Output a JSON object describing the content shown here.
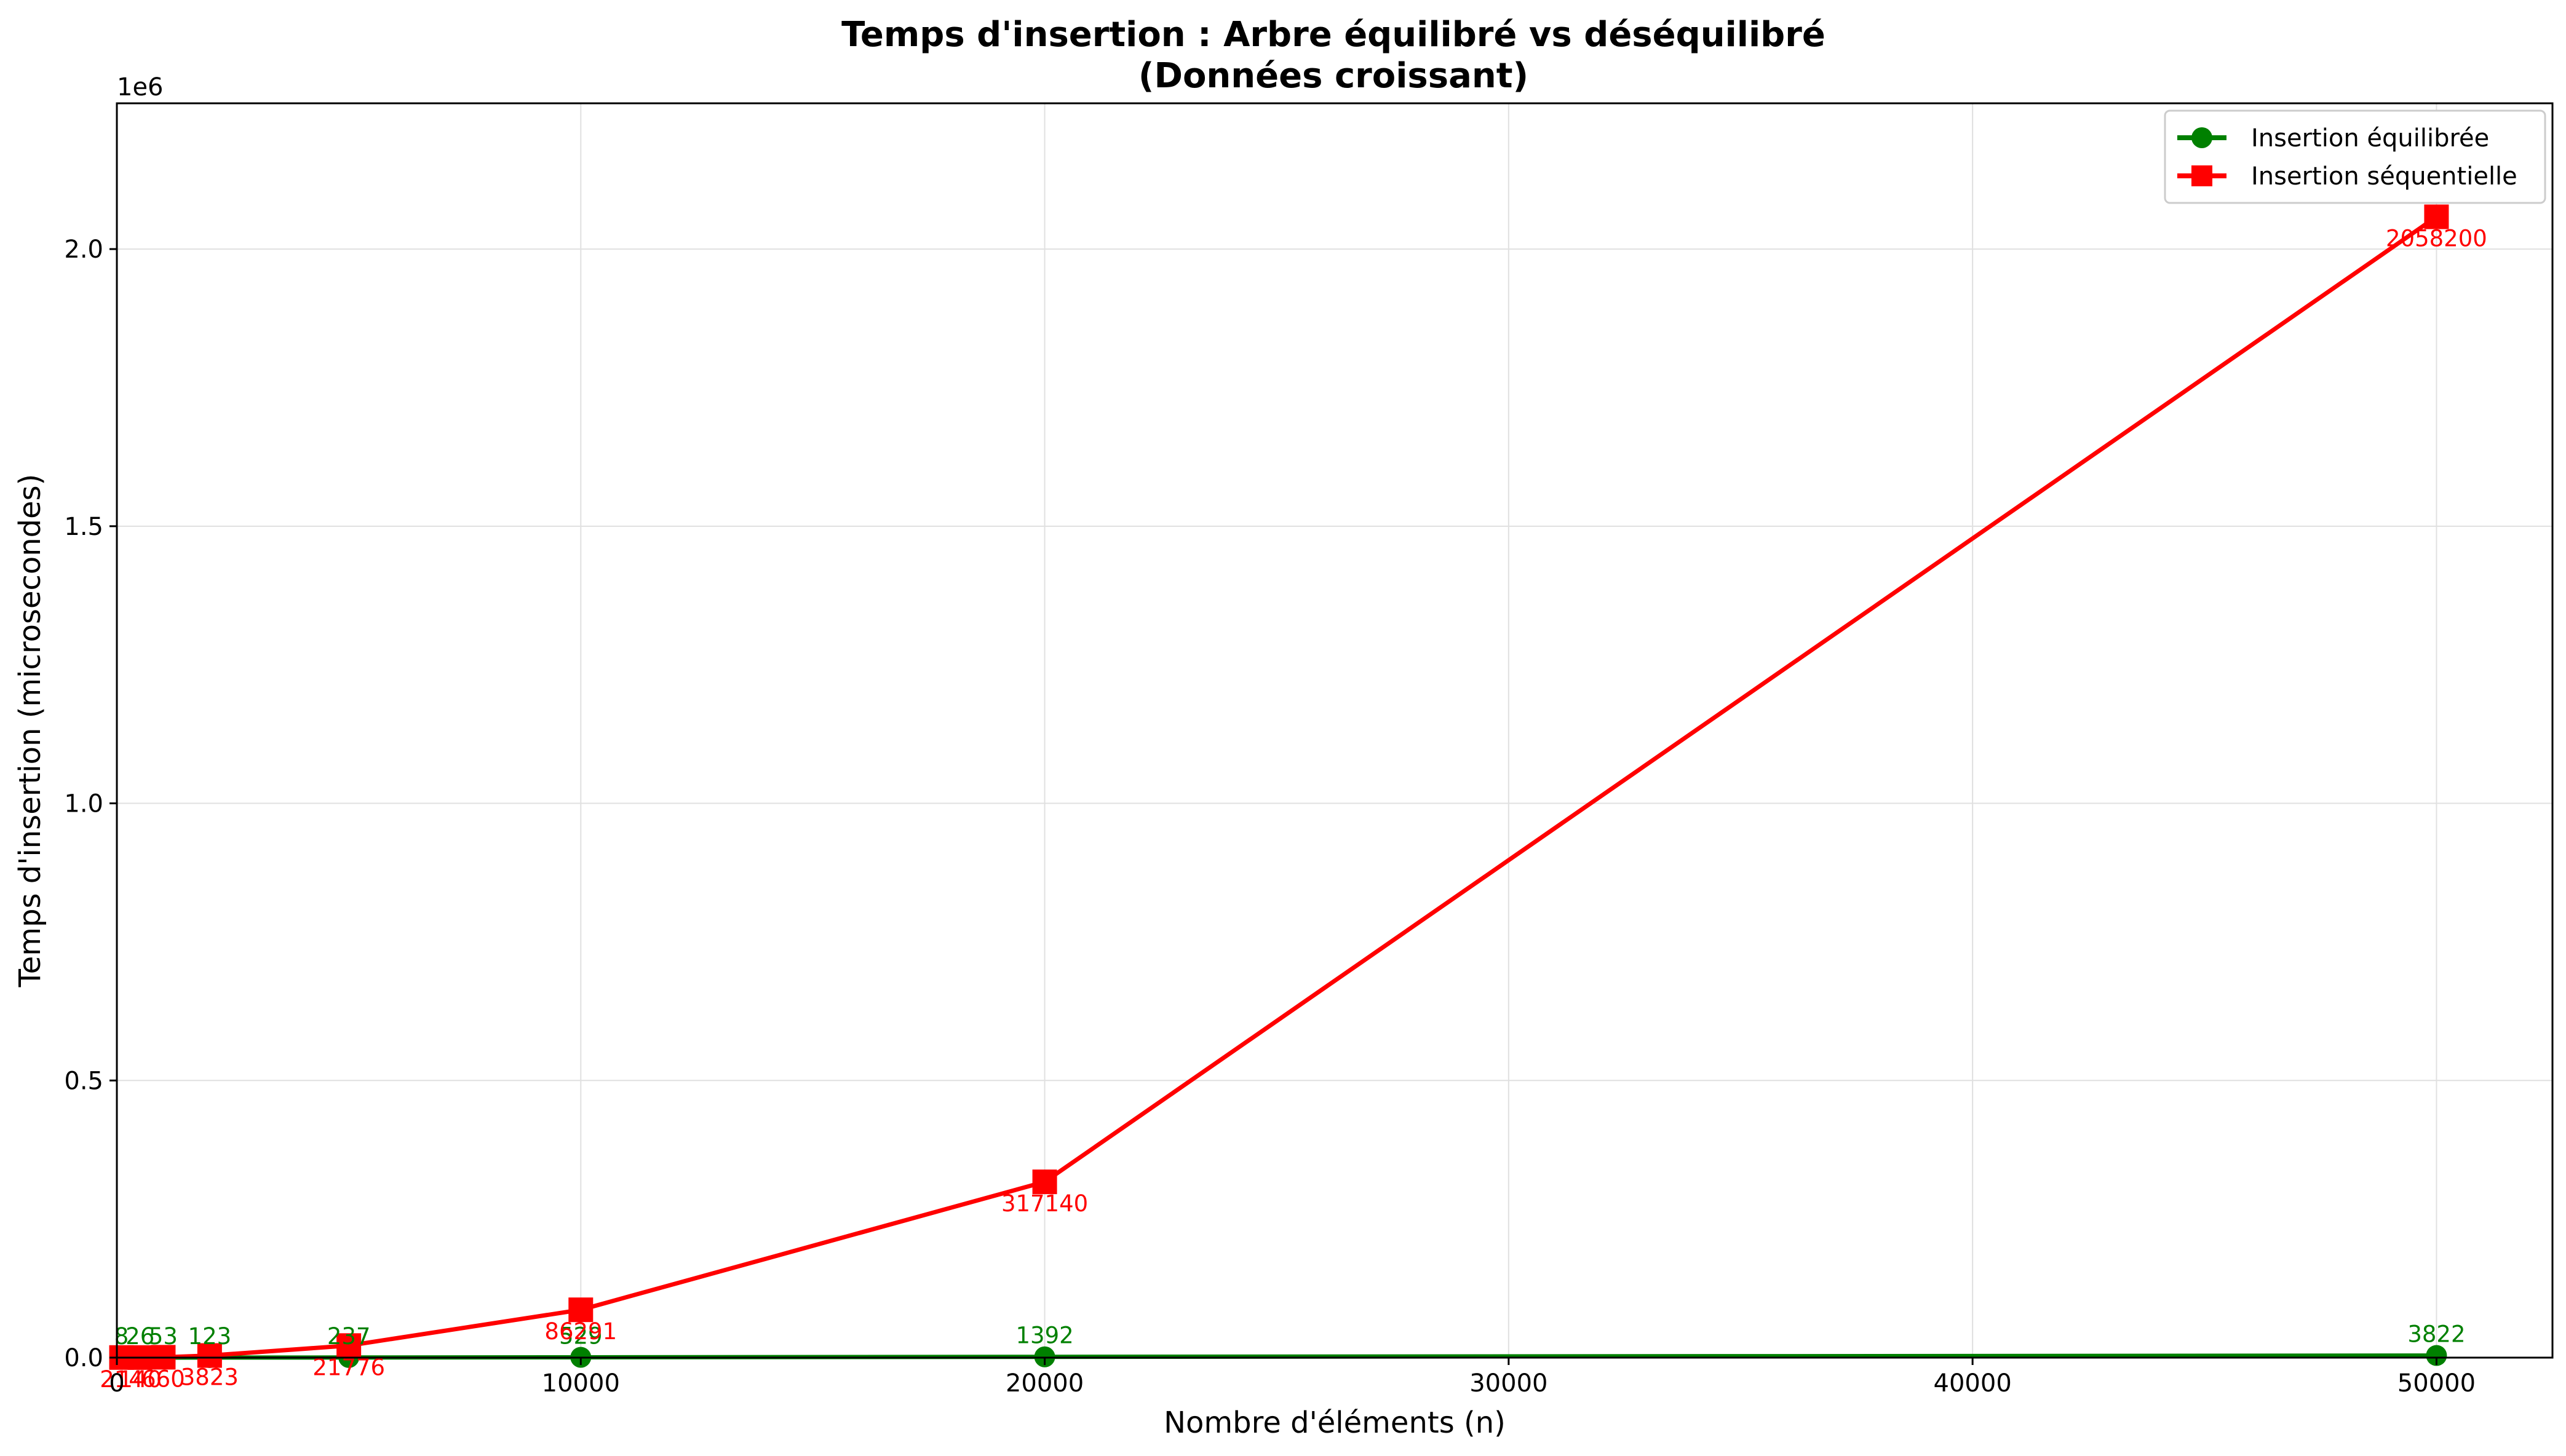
{
  "chart_data": {
    "type": "line",
    "title": "Temps d'insertion : Arbre équilibré vs déséquilibré",
    "subtitle": "(Données croissant)",
    "xlabel": "Nombre d'éléments (n)",
    "ylabel": "Temps d'insertion (microsecondes)",
    "y_offset_label": "1e6",
    "xlim": [
      0,
      52500
    ],
    "ylim": [
      0,
      2263000
    ],
    "x_ticks": [
      0,
      10000,
      20000,
      30000,
      40000,
      50000
    ],
    "x_tick_labels": [
      "0",
      "10000",
      "20000",
      "30000",
      "40000",
      "50000"
    ],
    "y_ticks": [
      0,
      500000,
      1000000,
      1500000,
      2000000
    ],
    "y_tick_labels": [
      "0.0",
      "0.5",
      "1.0",
      "1.5",
      "2.0"
    ],
    "grid": true,
    "legend_position": "top-right",
    "x": [
      100,
      500,
      1000,
      2000,
      5000,
      10000,
      20000,
      50000
    ],
    "series": [
      {
        "name": "Insertion équilibrée",
        "color": "#008000",
        "marker": "circle",
        "values": [
          8,
          26,
          53,
          123,
          237,
          529,
          1392,
          3822
        ],
        "labels": [
          "8",
          "26",
          "53",
          "123",
          "237",
          "529",
          "1392",
          "3822"
        ]
      },
      {
        "name": "Insertion séquentielle",
        "color": "#ff0000",
        "marker": "square",
        "values": [
          214,
          140,
          660,
          3823,
          21776,
          86291,
          317140,
          2058200
        ],
        "labels": [
          "214",
          "140",
          "660",
          "3823",
          "21776",
          "86291",
          "317140",
          "2058200"
        ]
      }
    ]
  }
}
